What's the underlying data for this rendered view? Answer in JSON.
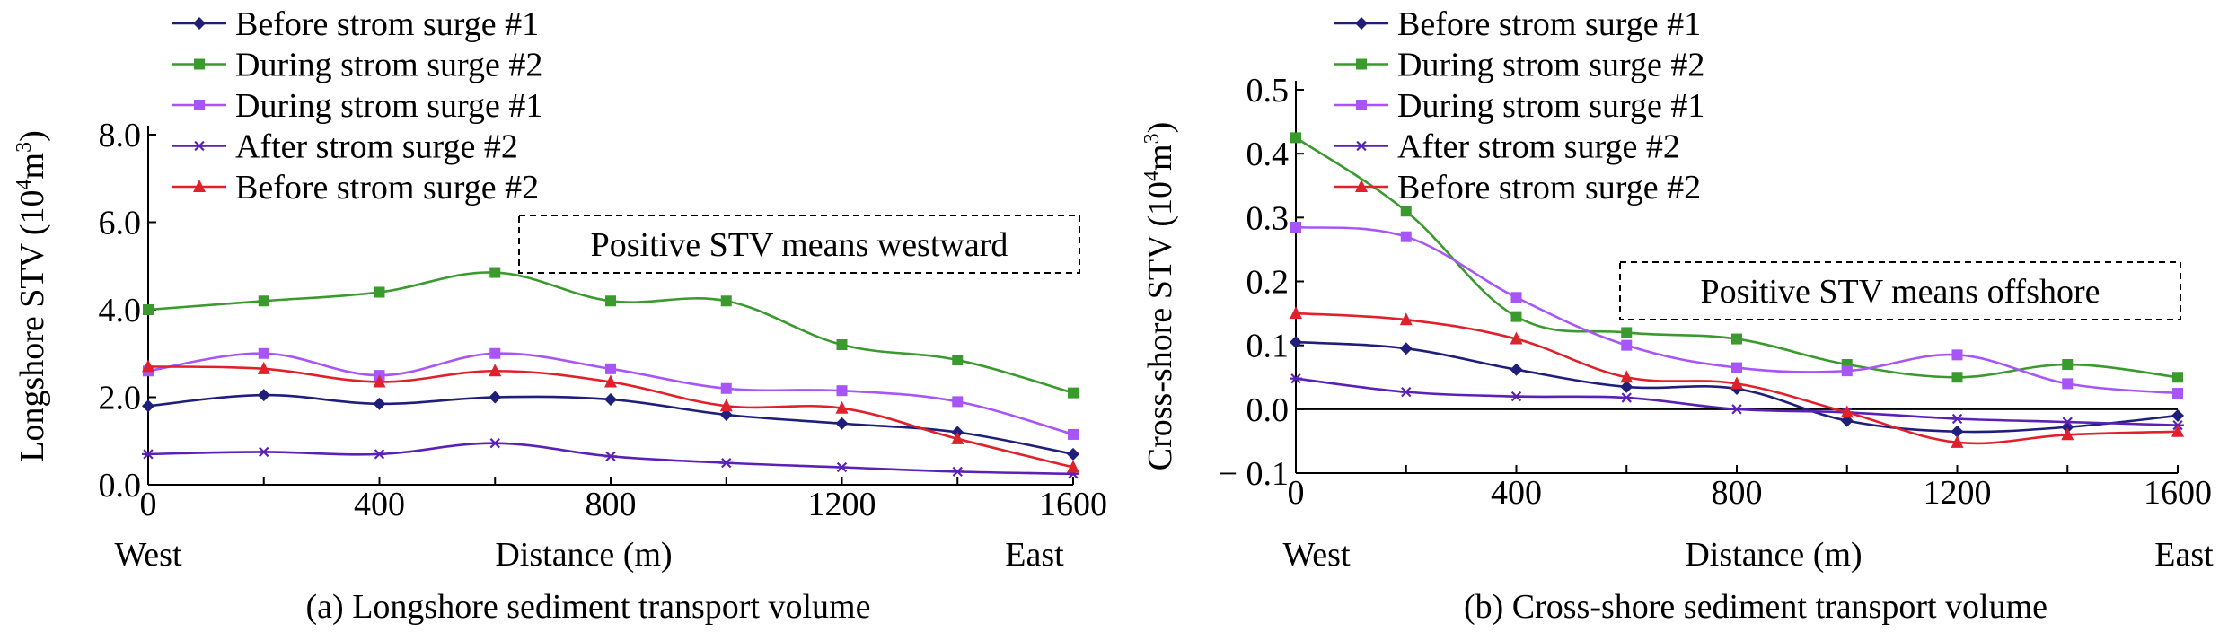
{
  "chart_data": [
    {
      "type": "line",
      "caption": "(a) Longshore sediment transport volume",
      "xlabel": "Distance (m)",
      "ylabel_main": "Longshore STV (10",
      "ylabel_sup": "4",
      "ylabel_unit": "m",
      "ylabel_sup2": "3",
      "ylabel_end": ")",
      "x_left_label": "West",
      "x_right_label": "East",
      "annotation": "Positive STV means westward",
      "xlim": [
        0,
        1600
      ],
      "ylim": [
        0,
        8
      ],
      "xticks": [
        0,
        400,
        800,
        1200,
        1600
      ],
      "xtick_labels": [
        "0",
        "400",
        "800",
        "1200",
        "1600"
      ],
      "yticks": [
        0,
        2,
        4,
        6,
        8
      ],
      "ytick_labels": [
        "0.0",
        "2.0",
        "4.0",
        "6.0",
        "8.0"
      ],
      "grid": false,
      "legend_position": "top-left",
      "series": [
        {
          "name": "Before strom surge #1",
          "color": "#1f1f7a",
          "marker": "diamond",
          "x": [
            0,
            200,
            400,
            600,
            800,
            1000,
            1200,
            1400,
            1600
          ],
          "y": [
            1.8,
            2.05,
            1.85,
            2.0,
            1.95,
            1.6,
            1.4,
            1.2,
            0.7
          ]
        },
        {
          "name": "During strom surge #2",
          "color": "#3a9a2e",
          "marker": "square",
          "x": [
            0,
            200,
            400,
            600,
            800,
            1000,
            1200,
            1400,
            1600
          ],
          "y": [
            4.0,
            4.2,
            4.4,
            4.85,
            4.2,
            4.2,
            3.2,
            2.85,
            2.1
          ]
        },
        {
          "name": "During strom surge #1",
          "color": "#a855f7",
          "marker": "square",
          "x": [
            0,
            200,
            400,
            600,
            800,
            1000,
            1200,
            1400,
            1600
          ],
          "y": [
            2.6,
            3.0,
            2.5,
            3.0,
            2.65,
            2.2,
            2.15,
            1.9,
            1.15
          ]
        },
        {
          "name": "After strom surge #2",
          "color": "#5b21b6",
          "marker": "star",
          "x": [
            0,
            200,
            400,
            600,
            800,
            1000,
            1200,
            1400,
            1600
          ],
          "y": [
            0.7,
            0.75,
            0.7,
            0.95,
            0.65,
            0.5,
            0.4,
            0.3,
            0.25
          ]
        },
        {
          "name": "Before strom surge #2",
          "color": "#e0202a",
          "marker": "triangle",
          "x": [
            0,
            200,
            400,
            600,
            800,
            1000,
            1200,
            1400,
            1600
          ],
          "y": [
            2.7,
            2.65,
            2.35,
            2.6,
            2.35,
            1.8,
            1.75,
            1.05,
            0.4
          ]
        }
      ]
    },
    {
      "type": "line",
      "caption": "(b) Cross-shore sediment transport volume",
      "xlabel": "Distance (m)",
      "ylabel_main": "Cross-shore STV (10",
      "ylabel_sup": "4",
      "ylabel_unit": "m",
      "ylabel_sup2": "3",
      "ylabel_end": ")",
      "x_left_label": "West",
      "x_right_label": "East",
      "annotation": "Positive STV means offshore",
      "xlim": [
        0,
        1600
      ],
      "ylim": [
        -0.1,
        0.5
      ],
      "xticks": [
        0,
        400,
        800,
        1200,
        1600
      ],
      "xtick_labels": [
        "0",
        "400",
        "800",
        "1200",
        "1600"
      ],
      "yticks": [
        -0.1,
        0,
        0.1,
        0.2,
        0.3,
        0.4,
        0.5
      ],
      "ytick_labels": [
        "− 0.1",
        "0.0",
        "0.1",
        "0.2",
        "0.3",
        "0.4",
        "0.5"
      ],
      "zero_line": true,
      "grid": false,
      "legend_position": "top-left",
      "series": [
        {
          "name": "Before strom surge #1",
          "color": "#1f1f7a",
          "marker": "diamond",
          "x": [
            0,
            200,
            400,
            600,
            800,
            1000,
            1200,
            1400,
            1600
          ],
          "y": [
            0.105,
            0.095,
            0.062,
            0.035,
            0.032,
            -0.018,
            -0.035,
            -0.028,
            -0.01
          ]
        },
        {
          "name": "During strom surge #2",
          "color": "#3a9a2e",
          "marker": "square",
          "x": [
            0,
            200,
            400,
            600,
            800,
            1000,
            1200,
            1400,
            1600
          ],
          "y": [
            0.425,
            0.31,
            0.145,
            0.12,
            0.11,
            0.07,
            0.05,
            0.07,
            0.05
          ]
        },
        {
          "name": "During strom surge #1",
          "color": "#a855f7",
          "marker": "square",
          "x": [
            0,
            200,
            400,
            600,
            800,
            1000,
            1200,
            1400,
            1600
          ],
          "y": [
            0.285,
            0.27,
            0.175,
            0.1,
            0.065,
            0.06,
            0.085,
            0.04,
            0.025
          ]
        },
        {
          "name": "After strom surge #2",
          "color": "#5b21b6",
          "marker": "star",
          "x": [
            0,
            200,
            400,
            600,
            800,
            1000,
            1200,
            1400,
            1600
          ],
          "y": [
            0.048,
            0.027,
            0.02,
            0.018,
            0.0,
            -0.005,
            -0.015,
            -0.02,
            -0.025
          ]
        },
        {
          "name": "Before strom surge #2",
          "color": "#e0202a",
          "marker": "triangle",
          "x": [
            0,
            200,
            400,
            600,
            800,
            1000,
            1200,
            1400,
            1600
          ],
          "y": [
            0.15,
            0.14,
            0.11,
            0.05,
            0.04,
            -0.005,
            -0.052,
            -0.04,
            -0.035
          ]
        }
      ]
    }
  ]
}
